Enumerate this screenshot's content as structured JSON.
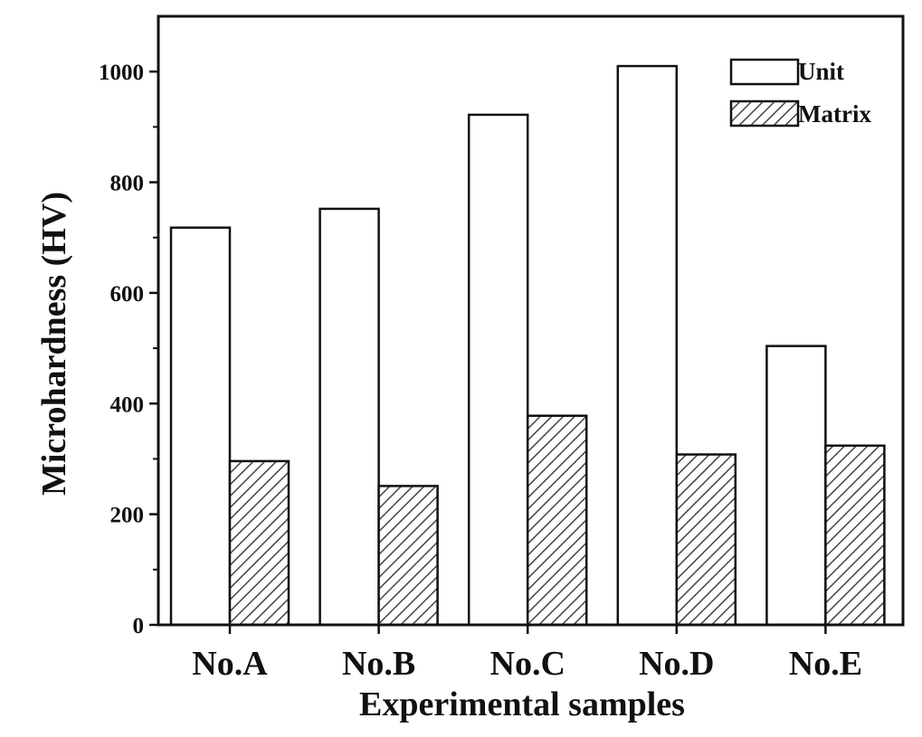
{
  "chart_data": {
    "type": "bar",
    "categories": [
      "No.A",
      "No.B",
      "No.C",
      "No.D",
      "No.E"
    ],
    "series": [
      {
        "name": "Unit",
        "values": [
          718,
          752,
          922,
          1010,
          504
        ],
        "fill": "#ffffff",
        "pattern": "none"
      },
      {
        "name": "Matrix",
        "values": [
          296,
          251,
          378,
          308,
          324
        ],
        "fill": "#ffffff",
        "pattern": "diagonal-hatch"
      }
    ],
    "xlabel": "Experimental samples",
    "ylabel": "Microhardness (HV)",
    "ylim": [
      0,
      1100
    ],
    "yticks": [
      0,
      200,
      400,
      600,
      800,
      1000
    ],
    "grid": false,
    "legend_position": "top-right",
    "colors": {
      "stroke": "#111111",
      "hatch": "#444444"
    }
  }
}
